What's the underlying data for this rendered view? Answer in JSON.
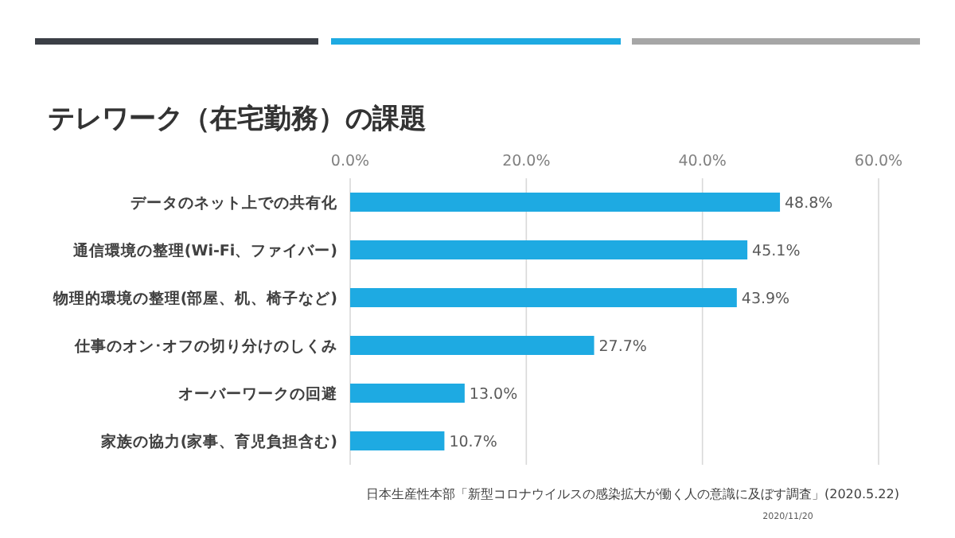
{
  "chart_data": {
    "type": "bar",
    "orientation": "horizontal",
    "title": "テレワーク（在宅勤務）の課題",
    "categories": [
      "データのネット上での共有化",
      "通信環境の整理(Wi-Fi、ファイバー)",
      "物理的環境の整理(部屋、机、椅子など)",
      "仕事のオン･オフの切り分けのしくみ",
      "オーバーワークの回避",
      "家族の協力(家事、育児負担含む)"
    ],
    "values": [
      48.8,
      45.1,
      43.9,
      27.7,
      13.0,
      10.7
    ],
    "value_labels": [
      "48.8%",
      "45.1%",
      "43.9%",
      "27.7%",
      "13.0%",
      "10.7%"
    ],
    "color": "#1eaae2",
    "xlim": [
      0,
      60
    ],
    "xticks": [
      {
        "value": 0,
        "label": "0.0%"
      },
      {
        "value": 20,
        "label": "20.0%"
      },
      {
        "value": 40,
        "label": "40.0%"
      },
      {
        "value": 60,
        "label": "60.0%"
      }
    ],
    "grid": "x",
    "annotations": [
      "日本生産性本部「新型コロナウイルスの感染拡大が働く人の意識に及ぼす調査」(2020.5.22)",
      "2020/11/20"
    ]
  }
}
